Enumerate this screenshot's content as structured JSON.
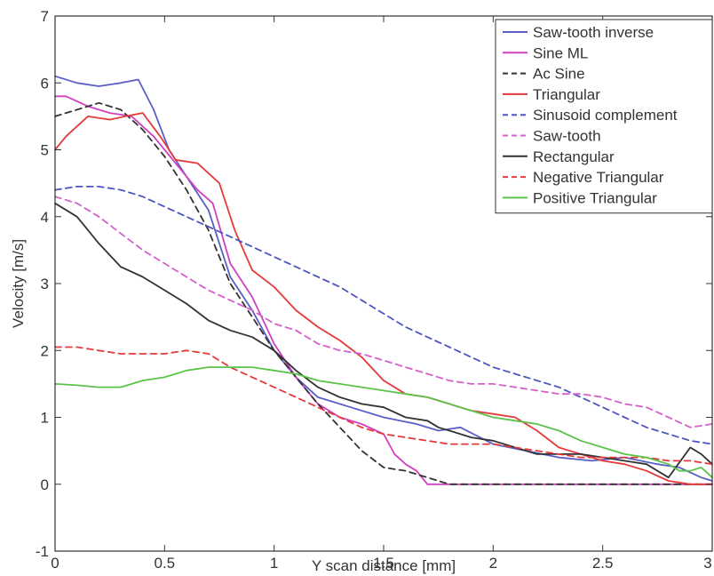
{
  "chart_data": {
    "type": "line",
    "xlabel": "Y scan distance [mm]",
    "ylabel": "Velocity [m/s]",
    "xlim": [
      0,
      3
    ],
    "ylim": [
      -1,
      7
    ],
    "xticks": [
      0,
      0.5,
      1,
      1.5,
      2,
      2.5,
      3
    ],
    "yticks": [
      -1,
      0,
      1,
      2,
      3,
      4,
      5,
      6,
      7
    ],
    "xtick_labels": [
      "0",
      "0.5",
      "1",
      "1.5",
      "2",
      "2.5",
      "3"
    ],
    "ytick_labels": [
      "-1",
      "0",
      "1",
      "2",
      "3",
      "4",
      "5",
      "6",
      "7"
    ],
    "grid": false,
    "legend_position": "top-right",
    "series": [
      {
        "name": "Saw-tooth inverse",
        "color": "#5a5fc8",
        "dash": "solid",
        "x": [
          0,
          0.1,
          0.2,
          0.3,
          0.38,
          0.45,
          0.52,
          0.6,
          0.7,
          0.8,
          0.9,
          1.0,
          1.1,
          1.2,
          1.35,
          1.5,
          1.65,
          1.75,
          1.85,
          2.0,
          2.15,
          2.3,
          2.45,
          2.6,
          2.75,
          2.85,
          2.95,
          3.0
        ],
        "y": [
          6.1,
          6.0,
          5.95,
          6.0,
          6.05,
          5.6,
          5.0,
          4.6,
          4.1,
          3.1,
          2.6,
          2.0,
          1.6,
          1.3,
          1.15,
          1.0,
          0.9,
          0.8,
          0.85,
          0.6,
          0.5,
          0.4,
          0.35,
          0.4,
          0.3,
          0.25,
          0.1,
          0.05
        ]
      },
      {
        "name": "Sine ML",
        "color": "#d040c0",
        "dash": "solid",
        "x": [
          0,
          0.05,
          0.15,
          0.25,
          0.35,
          0.45,
          0.55,
          0.65,
          0.72,
          0.8,
          0.9,
          1.0,
          1.1,
          1.2,
          1.3,
          1.4,
          1.5,
          1.55,
          1.6,
          1.65,
          1.7,
          1.8,
          2.0,
          2.5,
          3.0
        ],
        "y": [
          5.8,
          5.8,
          5.65,
          5.55,
          5.5,
          5.2,
          4.8,
          4.4,
          4.2,
          3.3,
          2.8,
          2.1,
          1.6,
          1.2,
          1.0,
          0.9,
          0.75,
          0.45,
          0.3,
          0.2,
          0.0,
          0.0,
          0.0,
          0.0,
          0.0
        ]
      },
      {
        "name": "Ac Sine",
        "color": "#333333",
        "dash": "dashed",
        "x": [
          0,
          0.1,
          0.2,
          0.3,
          0.4,
          0.5,
          0.6,
          0.7,
          0.8,
          0.9,
          1.0,
          1.1,
          1.2,
          1.3,
          1.4,
          1.5,
          1.6,
          1.7,
          1.8,
          2.0,
          2.5,
          3.0
        ],
        "y": [
          5.5,
          5.6,
          5.7,
          5.6,
          5.3,
          4.9,
          4.4,
          3.8,
          3.0,
          2.5,
          2.0,
          1.6,
          1.2,
          0.85,
          0.5,
          0.25,
          0.2,
          0.1,
          0.0,
          0.0,
          0.0,
          0.0
        ]
      },
      {
        "name": "Triangular",
        "color": "#e53a3a",
        "dash": "solid",
        "x": [
          0,
          0.05,
          0.15,
          0.25,
          0.32,
          0.4,
          0.48,
          0.55,
          0.65,
          0.75,
          0.82,
          0.9,
          1.0,
          1.1,
          1.2,
          1.3,
          1.4,
          1.5,
          1.6,
          1.7,
          1.8,
          1.9,
          2.0,
          2.1,
          2.2,
          2.3,
          2.4,
          2.5,
          2.6,
          2.7,
          2.8,
          2.9,
          3.0
        ],
        "y": [
          5.0,
          5.2,
          5.5,
          5.45,
          5.5,
          5.55,
          5.2,
          4.85,
          4.8,
          4.5,
          3.8,
          3.2,
          2.95,
          2.6,
          2.35,
          2.15,
          1.9,
          1.55,
          1.35,
          1.3,
          1.2,
          1.1,
          1.05,
          1.0,
          0.8,
          0.55,
          0.45,
          0.35,
          0.3,
          0.2,
          0.05,
          0.0,
          0.0
        ]
      },
      {
        "name": "Sinusoid complement",
        "color": "#4d55c0",
        "dash": "dashed",
        "x": [
          0,
          0.1,
          0.2,
          0.3,
          0.4,
          0.5,
          0.6,
          0.7,
          0.8,
          0.9,
          1.0,
          1.1,
          1.2,
          1.3,
          1.4,
          1.5,
          1.6,
          1.7,
          1.8,
          1.9,
          2.0,
          2.1,
          2.2,
          2.3,
          2.4,
          2.5,
          2.6,
          2.7,
          2.8,
          2.9,
          3.0
        ],
        "y": [
          4.4,
          4.45,
          4.45,
          4.4,
          4.3,
          4.15,
          4.0,
          3.85,
          3.7,
          3.55,
          3.4,
          3.25,
          3.1,
          2.95,
          2.75,
          2.55,
          2.35,
          2.2,
          2.05,
          1.9,
          1.75,
          1.65,
          1.55,
          1.45,
          1.3,
          1.15,
          1.0,
          0.85,
          0.75,
          0.65,
          0.6
        ]
      },
      {
        "name": "Saw-tooth",
        "color": "#d65fcc",
        "dash": "dashed",
        "x": [
          0,
          0.1,
          0.2,
          0.3,
          0.4,
          0.5,
          0.6,
          0.7,
          0.8,
          0.9,
          1.0,
          1.1,
          1.2,
          1.3,
          1.4,
          1.5,
          1.6,
          1.7,
          1.8,
          1.9,
          2.0,
          2.1,
          2.2,
          2.3,
          2.4,
          2.5,
          2.6,
          2.7,
          2.8,
          2.9,
          3.0
        ],
        "y": [
          4.3,
          4.2,
          4.0,
          3.75,
          3.5,
          3.3,
          3.1,
          2.9,
          2.75,
          2.6,
          2.4,
          2.3,
          2.1,
          2.0,
          1.95,
          1.85,
          1.75,
          1.65,
          1.55,
          1.5,
          1.5,
          1.45,
          1.4,
          1.35,
          1.35,
          1.3,
          1.2,
          1.15,
          1.0,
          0.85,
          0.9
        ]
      },
      {
        "name": "Rectangular",
        "color": "#333333",
        "dash": "solid",
        "x": [
          0,
          0.05,
          0.1,
          0.15,
          0.2,
          0.3,
          0.4,
          0.5,
          0.6,
          0.7,
          0.8,
          0.9,
          1.0,
          1.1,
          1.2,
          1.3,
          1.4,
          1.5,
          1.6,
          1.7,
          1.75,
          1.8,
          1.9,
          2.0,
          2.1,
          2.2,
          2.3,
          2.4,
          2.5,
          2.6,
          2.7,
          2.8,
          2.9,
          2.95,
          3.0
        ],
        "y": [
          4.2,
          4.1,
          4.0,
          3.8,
          3.6,
          3.25,
          3.1,
          2.9,
          2.7,
          2.45,
          2.3,
          2.2,
          2.0,
          1.7,
          1.45,
          1.3,
          1.2,
          1.15,
          1.0,
          0.95,
          0.85,
          0.8,
          0.7,
          0.65,
          0.55,
          0.45,
          0.45,
          0.45,
          0.4,
          0.35,
          0.3,
          0.1,
          0.55,
          0.45,
          0.3
        ]
      },
      {
        "name": "Negative Triangular",
        "color": "#e53a3a",
        "dash": "dashed",
        "x": [
          0,
          0.1,
          0.2,
          0.3,
          0.4,
          0.5,
          0.6,
          0.7,
          0.8,
          0.9,
          1.0,
          1.1,
          1.2,
          1.3,
          1.4,
          1.5,
          1.6,
          1.7,
          1.8,
          1.9,
          2.0,
          2.1,
          2.2,
          2.3,
          2.4,
          2.5,
          2.6,
          2.7,
          2.8,
          2.9,
          3.0
        ],
        "y": [
          2.05,
          2.05,
          2.0,
          1.95,
          1.95,
          1.95,
          2.0,
          1.95,
          1.75,
          1.6,
          1.45,
          1.3,
          1.15,
          1.0,
          0.85,
          0.75,
          0.7,
          0.65,
          0.6,
          0.6,
          0.6,
          0.55,
          0.5,
          0.45,
          0.4,
          0.4,
          0.4,
          0.4,
          0.35,
          0.35,
          0.3
        ]
      },
      {
        "name": "Positive Triangular",
        "color": "#5cc34a",
        "dash": "solid",
        "x": [
          0,
          0.1,
          0.2,
          0.3,
          0.4,
          0.5,
          0.6,
          0.7,
          0.8,
          0.9,
          1.0,
          1.1,
          1.2,
          1.3,
          1.4,
          1.5,
          1.6,
          1.7,
          1.8,
          1.9,
          2.0,
          2.1,
          2.2,
          2.3,
          2.4,
          2.5,
          2.6,
          2.7,
          2.8,
          2.85,
          2.9,
          2.95,
          3.0
        ],
        "y": [
          1.5,
          1.48,
          1.45,
          1.45,
          1.55,
          1.6,
          1.7,
          1.75,
          1.75,
          1.75,
          1.7,
          1.65,
          1.55,
          1.5,
          1.45,
          1.4,
          1.35,
          1.3,
          1.2,
          1.1,
          1.0,
          0.95,
          0.9,
          0.8,
          0.65,
          0.55,
          0.45,
          0.4,
          0.3,
          0.2,
          0.2,
          0.25,
          0.1
        ]
      }
    ]
  }
}
